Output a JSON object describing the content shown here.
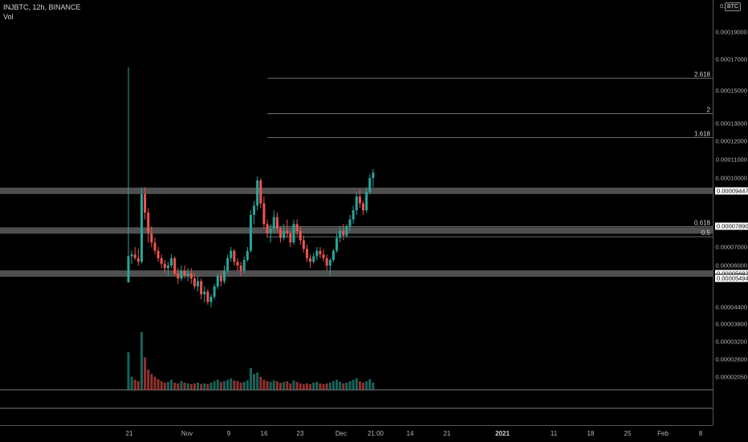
{
  "header": {
    "symbol_info": "INJBTC, 12h, BINANCE",
    "volume_label": "Vol"
  },
  "price_axis": {
    "currency_badge": "BTC",
    "top_label": "0.0",
    "ticks": [
      {
        "label": "0.00019000",
        "value": 0.00019
      },
      {
        "label": "0.00017000",
        "value": 0.00017
      },
      {
        "label": "0.00015000",
        "value": 0.00015
      },
      {
        "label": "0.00013000",
        "value": 0.00013
      },
      {
        "label": "0.00012000",
        "value": 0.00012
      },
      {
        "label": "0.00011000",
        "value": 0.00011
      },
      {
        "label": "0.00010000",
        "value": 0.0001
      },
      {
        "label": "0.00007000",
        "value": 7e-05
      },
      {
        "label": "0.00006000",
        "value": 6e-05
      },
      {
        "label": "0.00004400",
        "value": 4.4e-05
      },
      {
        "label": "0.00003800",
        "value": 3.8e-05
      },
      {
        "label": "0.00003200",
        "value": 3.2e-05
      },
      {
        "label": "0.00002600",
        "value": 2.6e-05
      },
      {
        "label": "0.00002050",
        "value": 2.05e-05
      }
    ],
    "labels": [
      {
        "label": "0.00009447",
        "value": 9.447e-05,
        "style": "white"
      },
      {
        "label": "0.00007890",
        "value": 7.89e-05,
        "style": "white"
      },
      {
        "label": "0.00005692",
        "value": 5.692e-05,
        "style": "white"
      },
      {
        "label": "0.00005494",
        "value": 5.494e-05,
        "style": "white"
      }
    ]
  },
  "time_axis": {
    "ticks": [
      {
        "label": "21",
        "bold": false
      },
      {
        "label": "Nov",
        "bold": false
      },
      {
        "label": "9",
        "bold": false
      },
      {
        "label": "16",
        "bold": false
      },
      {
        "label": "23",
        "bold": false
      },
      {
        "label": "Dec",
        "bold": false
      },
      {
        "label": "21:00",
        "bold": false
      },
      {
        "label": "14",
        "bold": false
      },
      {
        "label": "21",
        "bold": false
      },
      {
        "label": "2021",
        "bold": true
      },
      {
        "label": "11",
        "bold": false
      },
      {
        "label": "18",
        "bold": false
      },
      {
        "label": "25",
        "bold": false
      },
      {
        "label": "Feb",
        "bold": false
      },
      {
        "label": "8",
        "bold": false
      }
    ]
  },
  "fib_levels": [
    {
      "label": "2.618",
      "value": 0.000158
    },
    {
      "label": "2",
      "value": 0.000136
    },
    {
      "label": "1.618",
      "value": 0.000122
    },
    {
      "label": "0.618",
      "value": 7.89e-05
    },
    {
      "label": "0.5",
      "value": 7.45e-05
    }
  ],
  "horizontal_zones": [
    {
      "value": 9.447e-05
    },
    {
      "value": 7.72e-05
    },
    {
      "value": 5.692e-05
    }
  ],
  "colors": {
    "up": "#26a69a",
    "down": "#ef5350",
    "background": "#000000",
    "grid": "#333333"
  },
  "chart_data": {
    "type": "candlestick",
    "symbol": "INJBTC",
    "interval": "12h",
    "exchange": "BINANCE",
    "candles_ohlc": [
      [
        5.35e-05,
        0.000165,
        5.35e-05,
        6.5e-05
      ],
      [
        6.5e-05,
        6.8e-05,
        6.1e-05,
        6.6e-05
      ],
      [
        6.6e-05,
        7e-05,
        6.3e-05,
        6.4e-05
      ],
      [
        6.4e-05,
        6.9e-05,
        6e-05,
        6.2e-05
      ],
      [
        6.2e-05,
        9.6e-05,
        6.1e-05,
        9.3e-05
      ],
      [
        9.3e-05,
        9.6e-05,
        8.2e-05,
        8.5e-05
      ],
      [
        8.5e-05,
        8.7e-05,
        7.2e-05,
        7.6e-05
      ],
      [
        7.6e-05,
        7.9e-05,
        7e-05,
        7.2e-05
      ],
      [
        7.2e-05,
        7.4e-05,
        6.6e-05,
        6.8e-05
      ],
      [
        6.8e-05,
        7e-05,
        6.2e-05,
        6.4e-05
      ],
      [
        6.4e-05,
        6.6e-05,
        5.9e-05,
        6.1e-05
      ],
      [
        6.1e-05,
        6.3e-05,
        5.7e-05,
        5.9e-05
      ],
      [
        5.9e-05,
        6.2e-05,
        5.6e-05,
        6e-05
      ],
      [
        6e-05,
        6.6e-05,
        5.9e-05,
        6.4e-05
      ],
      [
        6.4e-05,
        6.5e-05,
        5.6e-05,
        5.7e-05
      ],
      [
        5.7e-05,
        5.9e-05,
        5.3e-05,
        5.5e-05
      ],
      [
        5.5e-05,
        6e-05,
        5.4e-05,
        5.8e-05
      ],
      [
        5.8e-05,
        6e-05,
        5.5e-05,
        5.6e-05
      ],
      [
        5.6e-05,
        5.9e-05,
        5.4e-05,
        5.7e-05
      ],
      [
        5.7e-05,
        5.9e-05,
        5.3e-05,
        5.5e-05
      ],
      [
        5.5e-05,
        5.7e-05,
        5.1e-05,
        5.2e-05
      ],
      [
        5.2e-05,
        5.6e-05,
        5e-05,
        5.4e-05
      ],
      [
        5.4e-05,
        5.5e-05,
        4.7e-05,
        4.9e-05
      ],
      [
        4.9e-05,
        5.2e-05,
        4.6e-05,
        5e-05
      ],
      [
        5e-05,
        5.1e-05,
        4.5e-05,
        4.6e-05
      ],
      [
        4.6e-05,
        4.9e-05,
        4.4e-05,
        4.8e-05
      ],
      [
        4.8e-05,
        5.3e-05,
        4.7e-05,
        5.2e-05
      ],
      [
        5.2e-05,
        5.7e-05,
        5.1e-05,
        5.6e-05
      ],
      [
        5.6e-05,
        5.8e-05,
        5.2e-05,
        5.4e-05
      ],
      [
        5.4e-05,
        6e-05,
        5.3e-05,
        5.8e-05
      ],
      [
        5.8e-05,
        6.6e-05,
        5.7e-05,
        6.4e-05
      ],
      [
        6.4e-05,
        7e-05,
        6.2e-05,
        6.8e-05
      ],
      [
        6.8e-05,
        6.9e-05,
        6e-05,
        6.2e-05
      ],
      [
        6.2e-05,
        6.4e-05,
        5.8e-05,
        6e-05
      ],
      [
        6e-05,
        6.2e-05,
        5.6e-05,
        5.8e-05
      ],
      [
        5.8e-05,
        6.5e-05,
        5.7e-05,
        6.3e-05
      ],
      [
        6.3e-05,
        7e-05,
        6.2e-05,
        6.8e-05
      ],
      [
        6.8e-05,
        8.6e-05,
        6.7e-05,
        8.4e-05
      ],
      [
        8.4e-05,
        9e-05,
        8e-05,
        8.8e-05
      ],
      [
        8.8e-05,
        0.000101,
        8.6e-05,
        9.9e-05
      ],
      [
        9.9e-05,
        0.0001,
        8.7e-05,
        8.9e-05
      ],
      [
        8.9e-05,
        9.2e-05,
        7.8e-05,
        8e-05
      ],
      [
        8e-05,
        8.2e-05,
        7.4e-05,
        7.6e-05
      ],
      [
        7.6e-05,
        8e-05,
        7.2e-05,
        7.8e-05
      ],
      [
        7.8e-05,
        8.6e-05,
        7.6e-05,
        8.3e-05
      ],
      [
        8.3e-05,
        8.5e-05,
        7.6e-05,
        7.8e-05
      ],
      [
        7.8e-05,
        7.9e-05,
        7.2e-05,
        7.4e-05
      ],
      [
        7.4e-05,
        8e-05,
        7.3e-05,
        7.7e-05
      ],
      [
        7.7e-05,
        8.2e-05,
        7.4e-05,
        7.6e-05
      ],
      [
        7.6e-05,
        7.7e-05,
        7e-05,
        7.2e-05
      ],
      [
        7.2e-05,
        8.2e-05,
        7.1e-05,
        8e-05
      ],
      [
        8e-05,
        8.2e-05,
        7.5e-05,
        7.7e-05
      ],
      [
        7.7e-05,
        7.9e-05,
        7.1e-05,
        7.3e-05
      ],
      [
        7.3e-05,
        7.5e-05,
        6.7e-05,
        6.9e-05
      ],
      [
        6.9e-05,
        7.1e-05,
        6.2e-05,
        6.4e-05
      ],
      [
        6.4e-05,
        6.6e-05,
        5.9e-05,
        6.2e-05
      ],
      [
        6.2e-05,
        6.7e-05,
        6.1e-05,
        6.5e-05
      ],
      [
        6.5e-05,
        7e-05,
        6.3e-05,
        6.8e-05
      ],
      [
        6.8e-05,
        7e-05,
        6.4e-05,
        6.6e-05
      ],
      [
        6.6e-05,
        6.9e-05,
        6.2e-05,
        6.4e-05
      ],
      [
        6.4e-05,
        6.6e-05,
        5.8e-05,
        6e-05
      ],
      [
        6e-05,
        6.4e-05,
        5.6e-05,
        6.3e-05
      ],
      [
        6.3e-05,
        6.9e-05,
        6.2e-05,
        6.8e-05
      ],
      [
        6.8e-05,
        7.6e-05,
        6.7e-05,
        7.4e-05
      ],
      [
        7.4e-05,
        7.9e-05,
        7.2e-05,
        7.7e-05
      ],
      [
        7.7e-05,
        8e-05,
        7.3e-05,
        7.5e-05
      ],
      [
        7.5e-05,
        8e-05,
        7.4e-05,
        7.9e-05
      ],
      [
        7.9e-05,
        8.4e-05,
        7.7e-05,
        8.2e-05
      ],
      [
        8.2e-05,
        8.8e-05,
        8e-05,
        8.6e-05
      ],
      [
        8.6e-05,
        9.4e-05,
        8.4e-05,
        9.2e-05
      ],
      [
        9.2e-05,
        9.5e-05,
        8.7e-05,
        8.9e-05
      ],
      [
        8.9e-05,
        9e-05,
        8.4e-05,
        8.6e-05
      ],
      [
        8.6e-05,
        9.6e-05,
        8.5e-05,
        9.4e-05
      ],
      [
        9.4e-05,
        0.000102,
        9.3e-05,
        0.0001
      ],
      [
        0.0001,
        0.000105,
        9.6e-05,
        0.000103
      ]
    ],
    "volumes": [
      52,
      18,
      14,
      12,
      80,
      45,
      28,
      22,
      18,
      15,
      12,
      10,
      11,
      14,
      10,
      9,
      12,
      10,
      9,
      8,
      9,
      10,
      8,
      9,
      8,
      10,
      12,
      14,
      11,
      12,
      14,
      16,
      13,
      12,
      10,
      11,
      13,
      30,
      22,
      24,
      18,
      14,
      12,
      11,
      13,
      12,
      10,
      11,
      12,
      9,
      13,
      11,
      9,
      8,
      9,
      8,
      10,
      11,
      9,
      8,
      9,
      10,
      12,
      14,
      11,
      9,
      10,
      12,
      14,
      16,
      12,
      10,
      12,
      15,
      10
    ]
  }
}
